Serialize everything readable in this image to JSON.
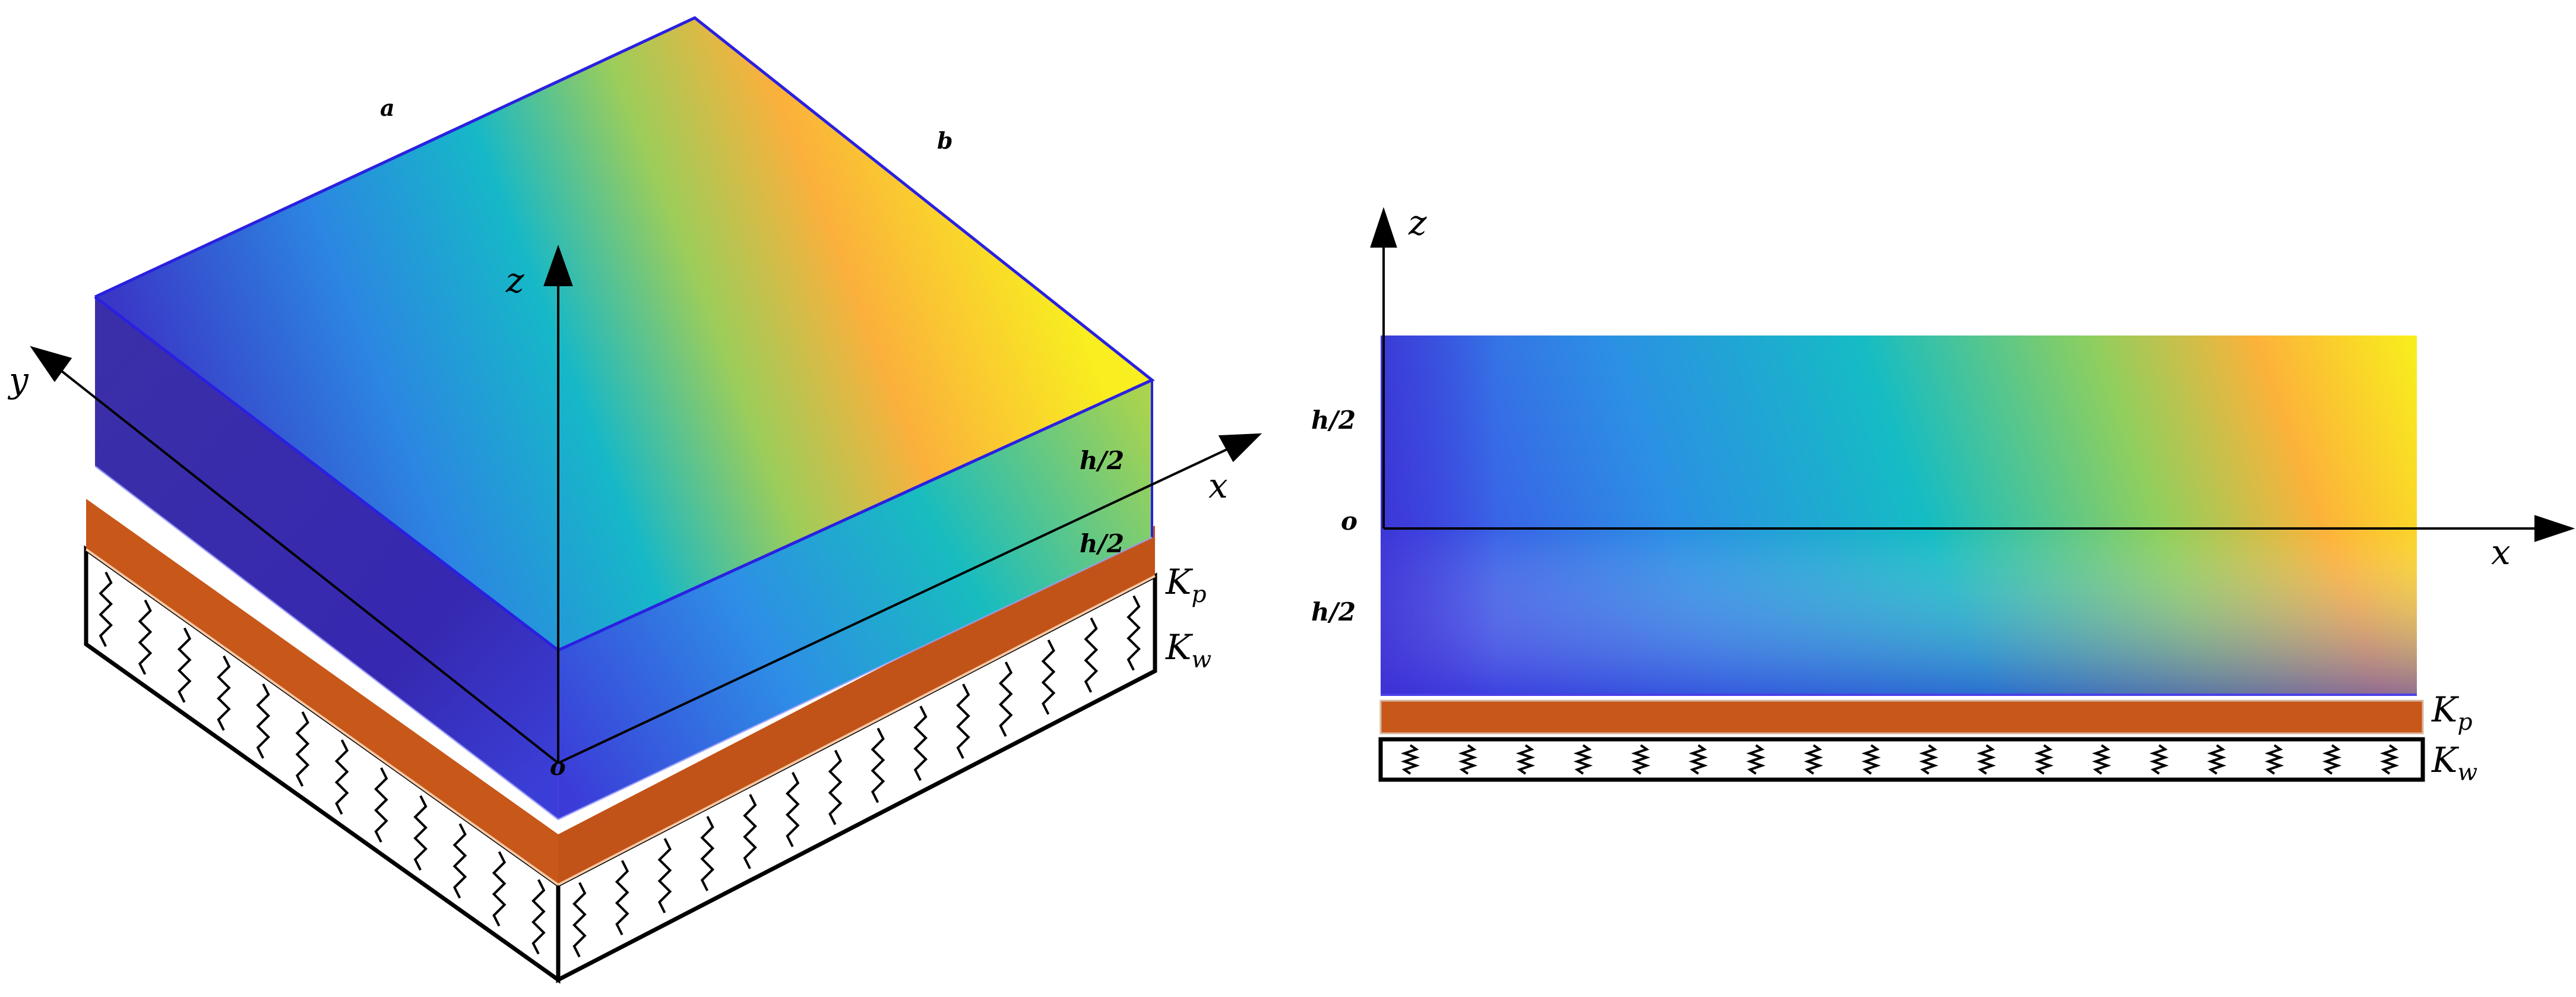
{
  "left_figure": {
    "edge_a": "a",
    "edge_b": "b",
    "axis_x": "x",
    "axis_y": "y",
    "axis_z": "z",
    "origin": "o",
    "half_thickness_top": "h/2",
    "half_thickness_bottom": "h/2",
    "pasternak_symbol": "K",
    "pasternak_sub": "p",
    "winkler_symbol": "K",
    "winkler_sub": "w"
  },
  "right_figure": {
    "axis_x": "x",
    "axis_z": "z",
    "origin": "o",
    "half_thickness_top": "h/2",
    "half_thickness_bottom": "h/2",
    "pasternak_symbol": "K",
    "pasternak_sub": "p",
    "winkler_symbol": "K",
    "winkler_sub": "w"
  },
  "colors": {
    "gradient_low": "#3b2fb0",
    "gradient_mid": "#13bcc0",
    "gradient_high": "#f5ee1c",
    "pasternak_layer": "#c8571a",
    "plate_edge": "#2a20e0"
  }
}
